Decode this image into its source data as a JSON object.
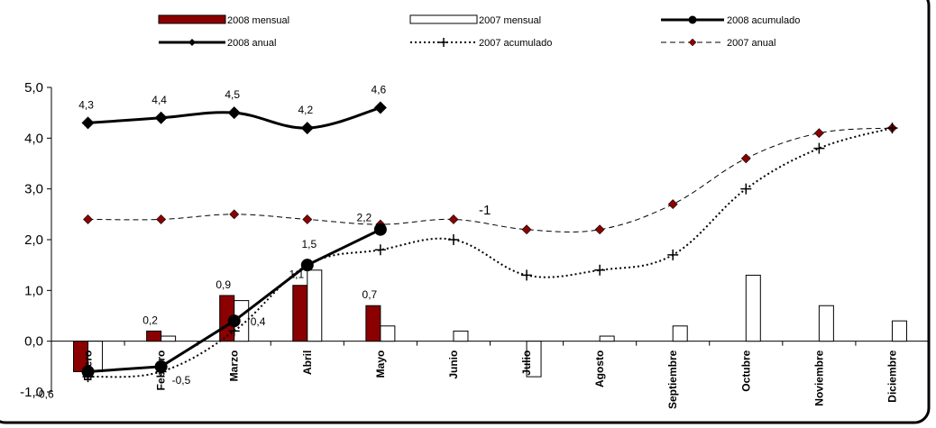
{
  "colors": {
    "bar_2008": "#8B0000",
    "bar_2007_fill": "#ffffff",
    "line": "#000000",
    "diamond_2007": "#8B0000",
    "frame_border": "#000000"
  },
  "chart_data": {
    "type": "bar",
    "categories": [
      "Enero",
      "Febrero",
      "Marzo",
      "Abril",
      "Mayo",
      "Junio",
      "Julio",
      "Agosto",
      "Septiembre",
      "Octubre",
      "Noviembre",
      "Diciembre"
    ],
    "ylim": [
      -1.0,
      5.0
    ],
    "yticks": [
      "-1,0",
      "0,0",
      "1,0",
      "2,0",
      "3,0",
      "4,0",
      "5,0"
    ],
    "ytick_values": [
      -1,
      0,
      1,
      2,
      3,
      4,
      5
    ],
    "legend_position": "top",
    "series": [
      {
        "name": "2008 mensual",
        "kind": "bar",
        "values": [
          -0.6,
          0.2,
          0.9,
          1.1,
          0.7,
          null,
          null,
          null,
          null,
          null,
          null,
          null
        ]
      },
      {
        "name": "2007 mensual",
        "kind": "bar",
        "values": [
          -0.6,
          0.1,
          0.8,
          1.4,
          0.3,
          0.2,
          -0.7,
          0.1,
          0.3,
          1.3,
          0.7,
          0.4
        ]
      },
      {
        "name": "2008 acumulado",
        "kind": "line",
        "values": [
          -0.6,
          -0.5,
          0.4,
          1.5,
          2.2,
          null,
          null,
          null,
          null,
          null,
          null,
          null
        ]
      },
      {
        "name": "2008 anual",
        "kind": "line",
        "values": [
          4.3,
          4.4,
          4.5,
          4.2,
          4.6,
          null,
          null,
          null,
          null,
          null,
          null,
          null
        ]
      },
      {
        "name": "2007 acumulado",
        "kind": "line",
        "values": [
          -0.7,
          -0.6,
          0.2,
          1.5,
          1.8,
          2.0,
          1.3,
          1.4,
          1.7,
          3.0,
          3.8,
          4.2
        ]
      },
      {
        "name": "2007 anual",
        "kind": "line",
        "values": [
          2.4,
          2.4,
          2.5,
          2.4,
          2.3,
          2.4,
          2.2,
          2.2,
          2.7,
          3.6,
          4.1,
          4.2
        ]
      }
    ],
    "data_labels": {
      "bar_2008": [
        "-0,6",
        "0,2",
        "0,9",
        "1,1",
        "0,7"
      ],
      "acumulado_2008": [
        "-0,5",
        "0,4",
        "1,5",
        "2,2"
      ],
      "anual_2008": [
        "4,3",
        "4,4",
        "4,5",
        "4,2",
        "4,6"
      ]
    },
    "annotations": [
      "-1"
    ],
    "legend": [
      "2008 mensual",
      "2007 mensual",
      "2008 acumulado",
      "2008 anual",
      "2007 acumulado",
      "2007 anual"
    ]
  }
}
